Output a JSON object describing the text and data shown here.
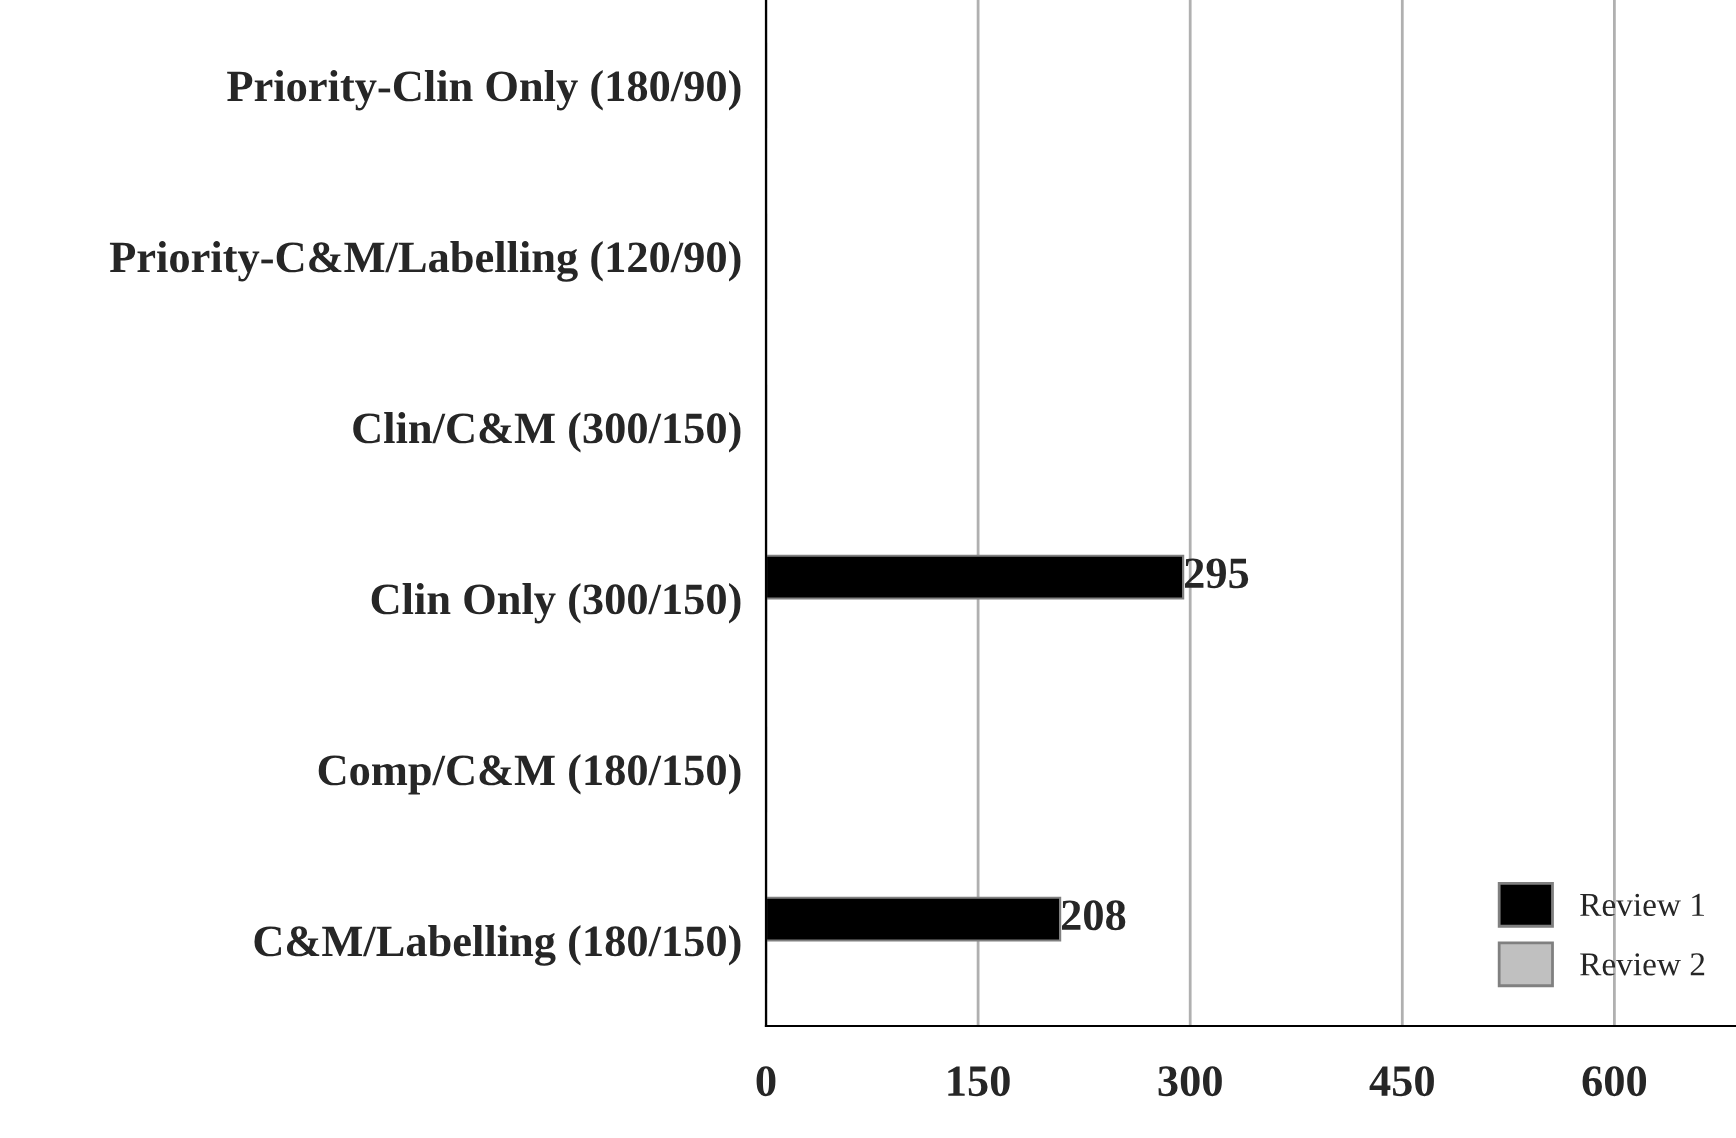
{
  "chart_data": {
    "type": "bar",
    "orientation": "horizontal",
    "categories": [
      "Priority-Clin Only (180/90)",
      "Priority-C&M/Labelling (120/90)",
      "Clin/C&M (300/150)",
      "Clin Only (300/150)",
      "Comp/C&M (180/150)",
      "C&M/Labelling (180/150)"
    ],
    "series": [
      {
        "name": "Review 1",
        "color": "#000000",
        "values": [
          null,
          null,
          null,
          295,
          null,
          208
        ]
      },
      {
        "name": "Review 2",
        "color": "#c0c0c0",
        "values": [
          null,
          null,
          null,
          null,
          null,
          null
        ]
      }
    ],
    "data_labels": true,
    "xlim": [
      0,
      686
    ],
    "xticks": [
      0,
      150,
      300,
      450,
      600
    ],
    "grid": "x",
    "legend": "bottom right"
  }
}
